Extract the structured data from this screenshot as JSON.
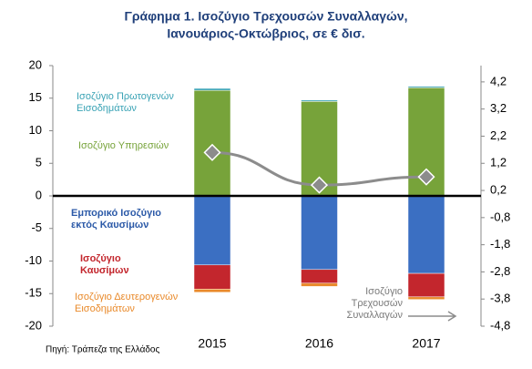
{
  "chart_data": {
    "type": "bar",
    "title": "Γράφημα 1. Ισοζύγιο Τρεχουσών Συναλλαγών,",
    "subtitle": "Ιανουάριος-Οκτώβριος, σε € δισ.",
    "source": "Πηγή: Τράπεζα της Ελλάδος",
    "categories": [
      "2015",
      "2016",
      "2017"
    ],
    "stacked": true,
    "series": [
      {
        "name": "Ισοζύγιο Υπηρεσιών",
        "color": "#77a33a",
        "values": [
          16.2,
          14.5,
          16.6
        ]
      },
      {
        "name": "Ισοζύγιο Πρωτογενών Εισοδημάτων",
        "color": "#3aa3b5",
        "values": [
          0.3,
          0.2,
          0.2
        ]
      },
      {
        "name": "Εμπορικό Ισοζύγιο εκτός Καυσίμων",
        "color": "#3b6fc2",
        "values": [
          -10.6,
          -11.3,
          -11.9
        ]
      },
      {
        "name": "Ισοζύγιο Καυσίμων",
        "color": "#c3262d",
        "values": [
          -3.7,
          -2.1,
          -3.6
        ]
      },
      {
        "name": "Ισοζύγιο Δευτερογενών Εισοδημάτων",
        "color": "#e98a2b",
        "values": [
          -0.5,
          -0.5,
          -0.4
        ]
      },
      {
        "name": "Ισοζύγιο Τρεχουσών Συναλλαγών",
        "color": "#8c8c8c",
        "type": "line",
        "axis": "y2",
        "values": [
          1.6,
          0.4,
          0.7
        ]
      }
    ],
    "ylim": [
      -20,
      20
    ],
    "yticks": [
      -20,
      -15,
      -10,
      -5,
      0,
      5,
      10,
      15,
      20
    ],
    "y2lim": [
      -4.8,
      4.8
    ],
    "y2ticks": [
      {
        "value": 4.2,
        "label": "4,2"
      },
      {
        "value": 3.2,
        "label": "3,2"
      },
      {
        "value": 2.2,
        "label": "2,2"
      },
      {
        "value": 1.2,
        "label": "1,2"
      },
      {
        "value": 0.2,
        "label": "0,2"
      },
      {
        "value": -0.8,
        "label": "-0,8"
      },
      {
        "value": -1.8,
        "label": "-1,8"
      },
      {
        "value": -2.8,
        "label": "-2,8"
      },
      {
        "value": -3.8,
        "label": "-3,8"
      },
      {
        "value": -4.8,
        "label": "-4,8"
      }
    ],
    "grid": false
  }
}
